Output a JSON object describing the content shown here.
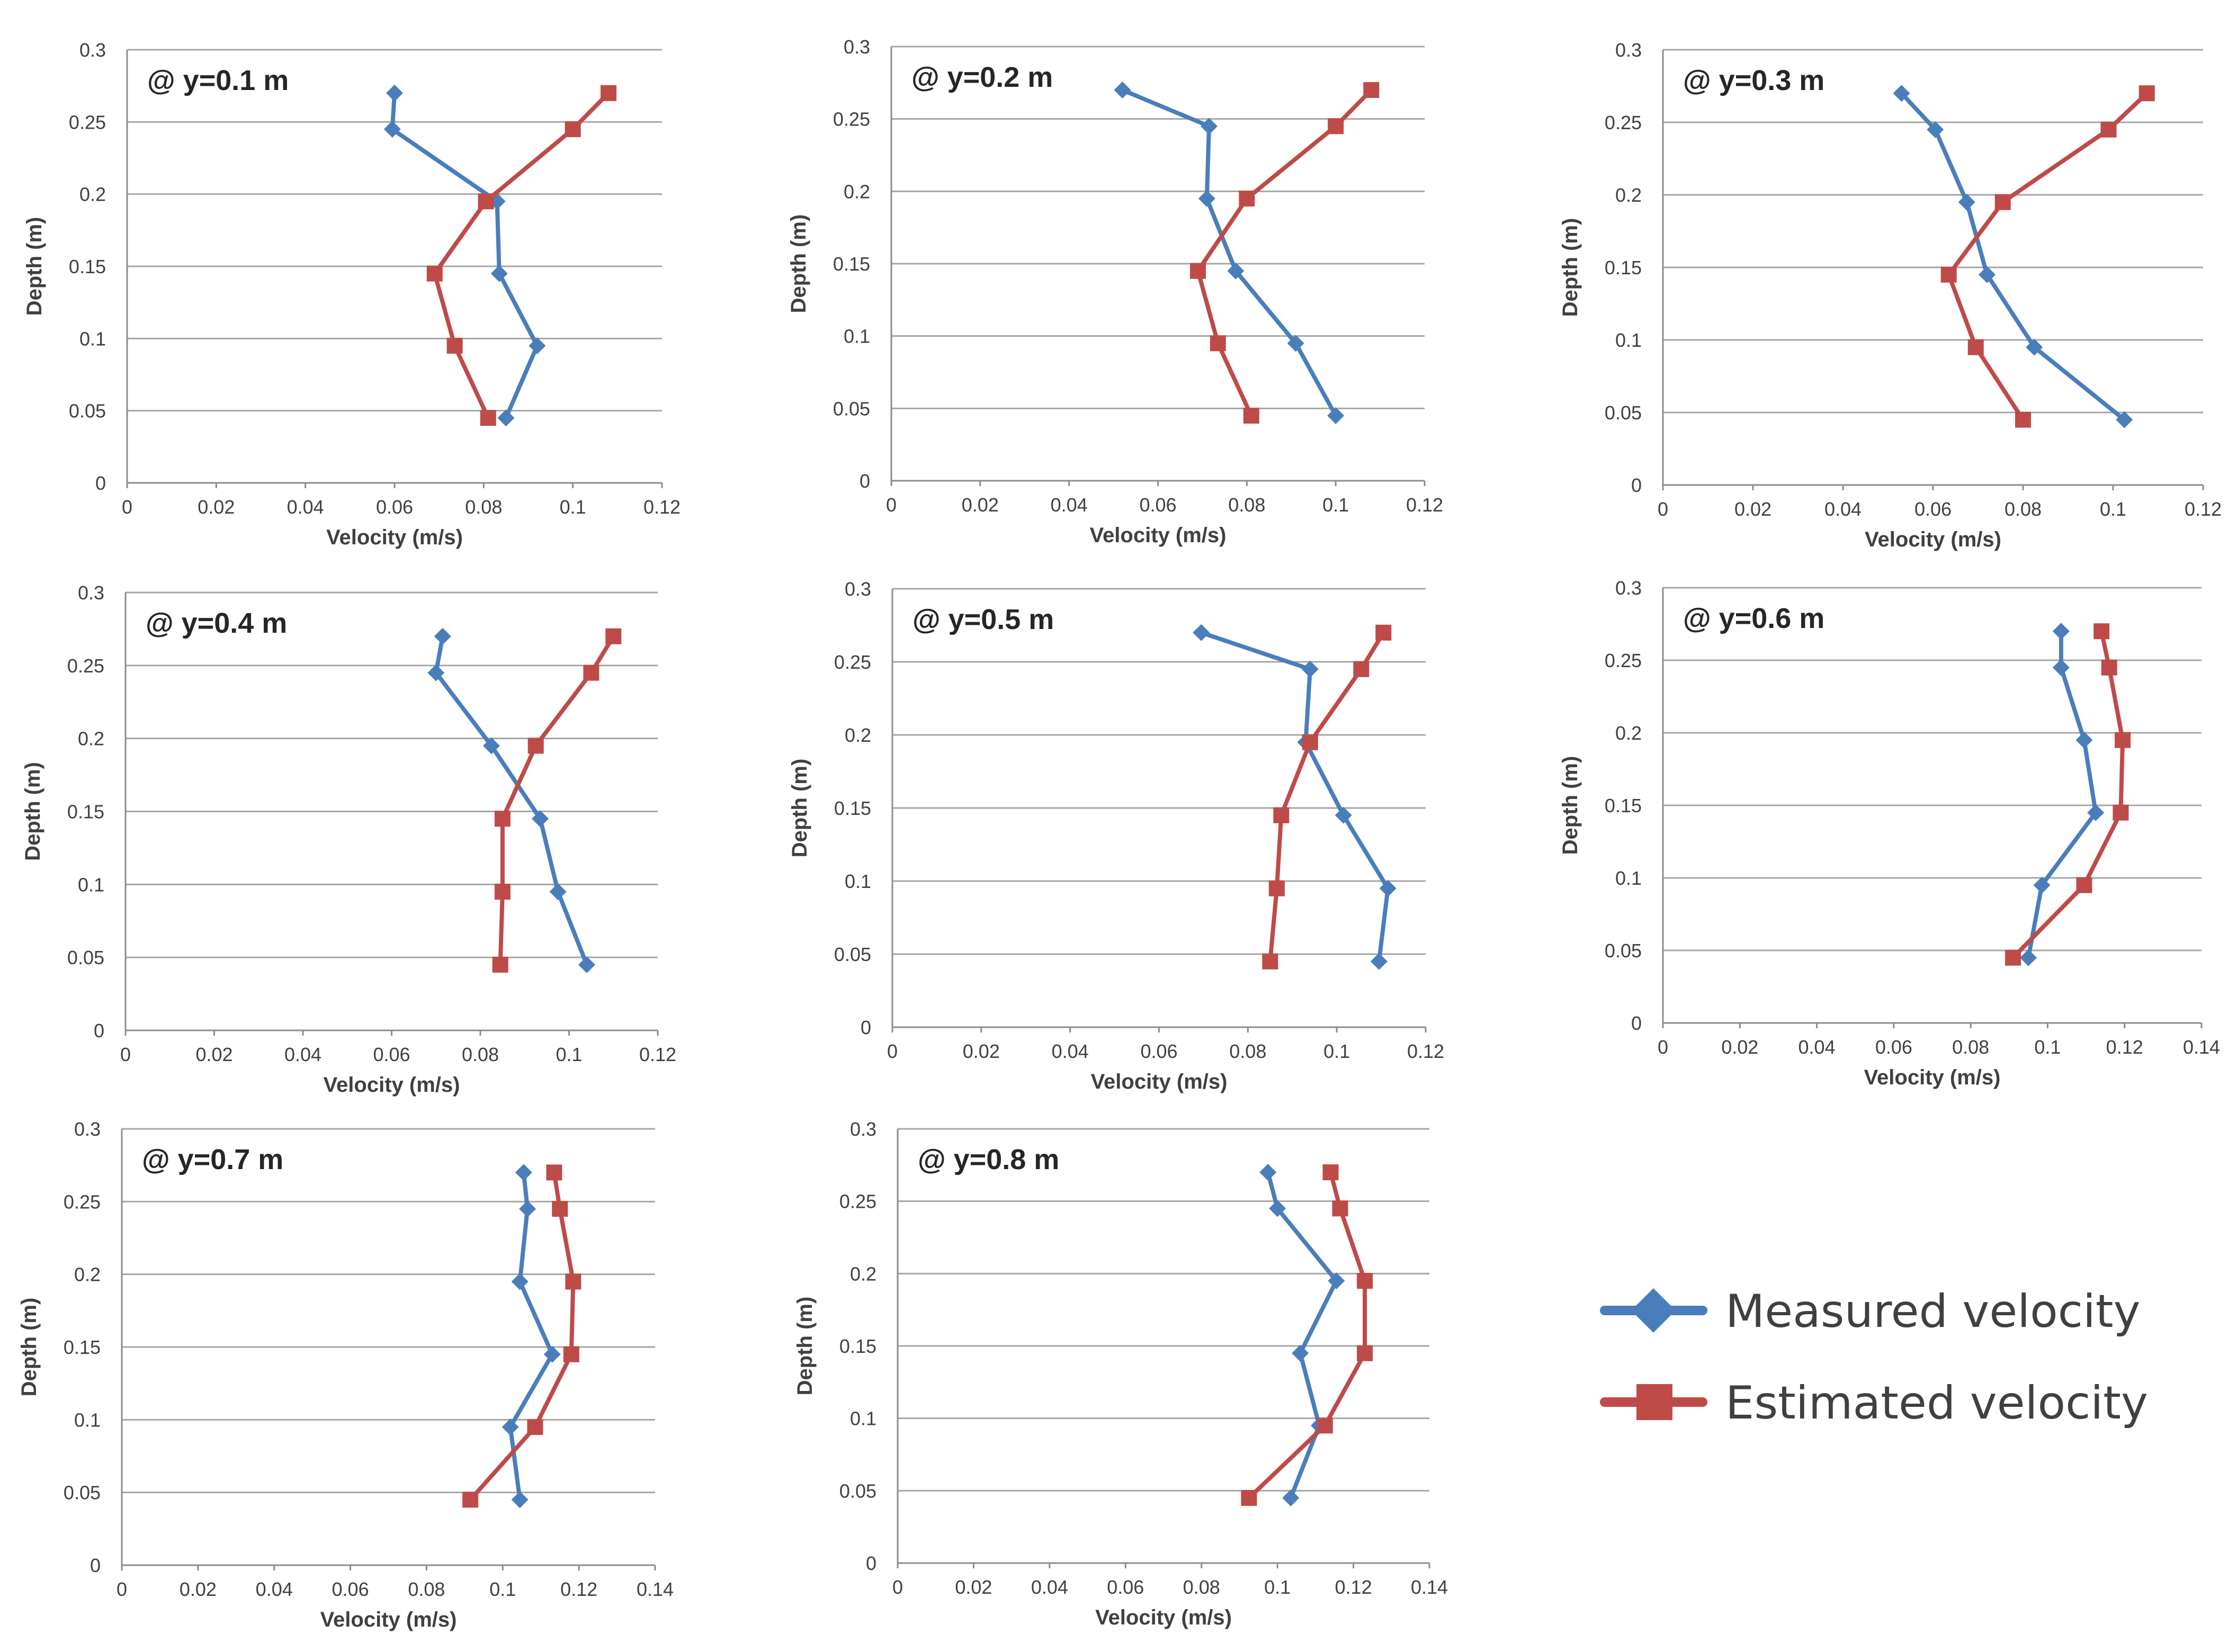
{
  "chart_data": [
    {
      "type": "line",
      "title": "@ y=0.1 m",
      "xlabel": "Velocity (m/s)",
      "ylabel": "Depth (m)",
      "xlim": [
        0,
        0.12
      ],
      "ylim": [
        0,
        0.3
      ],
      "xticks": [
        "0",
        "0.02",
        "0.04",
        "0.06",
        "0.08",
        "0.1",
        "0.12"
      ],
      "yticks": [
        "0",
        "0.05",
        "0.1",
        "0.15",
        "0.2",
        "0.25",
        "0.3"
      ],
      "series": [
        {
          "name": "Measured velocity",
          "color": "#4a7ebb",
          "marker": "diamond",
          "points": [
            [
              0.06,
              0.27
            ],
            [
              0.0595,
              0.245
            ],
            [
              0.083,
              0.195
            ],
            [
              0.0835,
              0.145
            ],
            [
              0.092,
              0.095
            ],
            [
              0.085,
              0.045
            ]
          ]
        },
        {
          "name": "Estimated velocity",
          "color": "#be4b48",
          "marker": "square",
          "points": [
            [
              0.108,
              0.27
            ],
            [
              0.1,
              0.245
            ],
            [
              0.0805,
              0.195
            ],
            [
              0.069,
              0.145
            ],
            [
              0.0735,
              0.095
            ],
            [
              0.081,
              0.045
            ]
          ]
        }
      ]
    },
    {
      "type": "line",
      "title": "@ y=0.2 m",
      "xlabel": "Velocity (m/s)",
      "ylabel": "Depth (m)",
      "xlim": [
        0,
        0.12
      ],
      "ylim": [
        0,
        0.3
      ],
      "xticks": [
        "0",
        "0.02",
        "0.04",
        "0.06",
        "0.08",
        "0.1",
        "0.12"
      ],
      "yticks": [
        "0",
        "0.05",
        "0.1",
        "0.15",
        "0.2",
        "0.25",
        "0.3"
      ],
      "series": [
        {
          "name": "Measured velocity",
          "color": "#4a7ebb",
          "marker": "diamond",
          "points": [
            [
              0.052,
              0.27
            ],
            [
              0.0715,
              0.245
            ],
            [
              0.071,
              0.195
            ],
            [
              0.0775,
              0.145
            ],
            [
              0.091,
              0.095
            ],
            [
              0.1,
              0.045
            ]
          ]
        },
        {
          "name": "Estimated velocity",
          "color": "#be4b48",
          "marker": "square",
          "points": [
            [
              0.108,
              0.27
            ],
            [
              0.1,
              0.245
            ],
            [
              0.08,
              0.195
            ],
            [
              0.069,
              0.145
            ],
            [
              0.0735,
              0.095
            ],
            [
              0.081,
              0.045
            ]
          ]
        }
      ]
    },
    {
      "type": "line",
      "title": "@ y=0.3 m",
      "xlabel": "Velocity (m/s)",
      "ylabel": "Depth (m)",
      "xlim": [
        0,
        0.12
      ],
      "ylim": [
        0,
        0.3
      ],
      "xticks": [
        "0",
        "0.02",
        "0.04",
        "0.06",
        "0.08",
        "0.1",
        "0.12"
      ],
      "yticks": [
        "0",
        "0.05",
        "0.1",
        "0.15",
        "0.2",
        "0.25",
        "0.3"
      ],
      "series": [
        {
          "name": "Measured velocity",
          "color": "#4a7ebb",
          "marker": "diamond",
          "points": [
            [
              0.053,
              0.27
            ],
            [
              0.0605,
              0.245
            ],
            [
              0.0675,
              0.195
            ],
            [
              0.072,
              0.145
            ],
            [
              0.0825,
              0.095
            ],
            [
              0.1025,
              0.045
            ]
          ]
        },
        {
          "name": "Estimated velocity",
          "color": "#be4b48",
          "marker": "square",
          "points": [
            [
              0.1075,
              0.27
            ],
            [
              0.099,
              0.245
            ],
            [
              0.0755,
              0.195
            ],
            [
              0.0635,
              0.145
            ],
            [
              0.0695,
              0.095
            ],
            [
              0.08,
              0.045
            ]
          ]
        }
      ]
    },
    {
      "type": "line",
      "title": "@ y=0.4 m",
      "xlabel": "Velocity (m/s)",
      "ylabel": "Depth (m)",
      "xlim": [
        0,
        0.12
      ],
      "ylim": [
        0,
        0.3
      ],
      "xticks": [
        "0",
        "0.02",
        "0.04",
        "0.06",
        "0.08",
        "0.1",
        "0.12"
      ],
      "yticks": [
        "0",
        "0.05",
        "0.1",
        "0.15",
        "0.2",
        "0.25",
        "0.3"
      ],
      "series": [
        {
          "name": "Measured velocity",
          "color": "#4a7ebb",
          "marker": "diamond",
          "points": [
            [
              0.0715,
              0.27
            ],
            [
              0.07,
              0.245
            ],
            [
              0.0825,
              0.195
            ],
            [
              0.0935,
              0.145
            ],
            [
              0.0975,
              0.095
            ],
            [
              0.104,
              0.045
            ]
          ]
        },
        {
          "name": "Estimated velocity",
          "color": "#be4b48",
          "marker": "square",
          "points": [
            [
              0.11,
              0.27
            ],
            [
              0.105,
              0.245
            ],
            [
              0.0925,
              0.195
            ],
            [
              0.085,
              0.145
            ],
            [
              0.085,
              0.095
            ],
            [
              0.0845,
              0.045
            ]
          ]
        }
      ]
    },
    {
      "type": "line",
      "title": "@ y=0.5 m",
      "xlabel": "Velocity (m/s)",
      "ylabel": "Depth (m)",
      "xlim": [
        0,
        0.12
      ],
      "ylim": [
        0,
        0.3
      ],
      "xticks": [
        "0",
        "0.02",
        "0.04",
        "0.06",
        "0.08",
        "0.1",
        "0.12"
      ],
      "yticks": [
        "0",
        "0.05",
        "0.1",
        "0.15",
        "0.2",
        "0.25",
        "0.3"
      ],
      "series": [
        {
          "name": "Measured velocity",
          "color": "#4a7ebb",
          "marker": "diamond",
          "points": [
            [
              0.0695,
              0.27
            ],
            [
              0.094,
              0.245
            ],
            [
              0.093,
              0.195
            ],
            [
              0.1015,
              0.145
            ],
            [
              0.1115,
              0.095
            ],
            [
              0.1095,
              0.045
            ]
          ]
        },
        {
          "name": "Estimated velocity",
          "color": "#be4b48",
          "marker": "square",
          "points": [
            [
              0.1105,
              0.27
            ],
            [
              0.1055,
              0.245
            ],
            [
              0.094,
              0.195
            ],
            [
              0.0875,
              0.145
            ],
            [
              0.0865,
              0.095
            ],
            [
              0.085,
              0.045
            ]
          ]
        }
      ]
    },
    {
      "type": "line",
      "title": "@ y=0.6 m",
      "xlabel": "Velocity (m/s)",
      "ylabel": "Depth (m)",
      "xlim": [
        0,
        0.14
      ],
      "ylim": [
        0,
        0.3
      ],
      "xticks": [
        "0",
        "0.02",
        "0.04",
        "0.06",
        "0.08",
        "0.1",
        "0.12",
        "0.14"
      ],
      "yticks": [
        "0",
        "0.05",
        "0.1",
        "0.15",
        "0.2",
        "0.25",
        "0.3"
      ],
      "series": [
        {
          "name": "Measured velocity",
          "color": "#4a7ebb",
          "marker": "diamond",
          "points": [
            [
              0.1035,
              0.27
            ],
            [
              0.1035,
              0.245
            ],
            [
              0.1095,
              0.195
            ],
            [
              0.1125,
              0.145
            ],
            [
              0.0985,
              0.095
            ],
            [
              0.095,
              0.045
            ]
          ]
        },
        {
          "name": "Estimated velocity",
          "color": "#be4b48",
          "marker": "square",
          "points": [
            [
              0.114,
              0.27
            ],
            [
              0.116,
              0.245
            ],
            [
              0.1195,
              0.195
            ],
            [
              0.119,
              0.145
            ],
            [
              0.1095,
              0.095
            ],
            [
              0.091,
              0.045
            ]
          ]
        }
      ]
    },
    {
      "type": "line",
      "title": "@ y=0.7 m",
      "xlabel": "Velocity (m/s)",
      "ylabel": "Depth (m)",
      "xlim": [
        0,
        0.14
      ],
      "ylim": [
        0,
        0.3
      ],
      "xticks": [
        "0",
        "0.02",
        "0.04",
        "0.06",
        "0.08",
        "0.1",
        "0.12",
        "0.14"
      ],
      "yticks": [
        "0",
        "0.05",
        "0.1",
        "0.15",
        "0.2",
        "0.25",
        "0.3"
      ],
      "series": [
        {
          "name": "Measured velocity",
          "color": "#4a7ebb",
          "marker": "diamond",
          "points": [
            [
              0.1055,
              0.27
            ],
            [
              0.1065,
              0.245
            ],
            [
              0.1045,
              0.195
            ],
            [
              0.113,
              0.145
            ],
            [
              0.102,
              0.095
            ],
            [
              0.1045,
              0.045
            ]
          ]
        },
        {
          "name": "Estimated velocity",
          "color": "#be4b48",
          "marker": "square",
          "points": [
            [
              0.1135,
              0.27
            ],
            [
              0.115,
              0.245
            ],
            [
              0.1185,
              0.195
            ],
            [
              0.118,
              0.145
            ],
            [
              0.1085,
              0.095
            ],
            [
              0.0915,
              0.045
            ]
          ]
        }
      ]
    },
    {
      "type": "line",
      "title": "@ y=0.8 m",
      "xlabel": "Velocity (m/s)",
      "ylabel": "Depth (m)",
      "xlim": [
        0,
        0.14
      ],
      "ylim": [
        0,
        0.3
      ],
      "xticks": [
        "0",
        "0.02",
        "0.04",
        "0.06",
        "0.08",
        "0.1",
        "0.12",
        "0.14"
      ],
      "yticks": [
        "0",
        "0.05",
        "0.1",
        "0.15",
        "0.2",
        "0.25",
        "0.3"
      ],
      "series": [
        {
          "name": "Measured velocity",
          "color": "#4a7ebb",
          "marker": "diamond",
          "points": [
            [
              0.0975,
              0.27
            ],
            [
              0.1,
              0.245
            ],
            [
              0.1155,
              0.195
            ],
            [
              0.106,
              0.145
            ],
            [
              0.111,
              0.095
            ],
            [
              0.1035,
              0.045
            ]
          ]
        },
        {
          "name": "Estimated velocity",
          "color": "#be4b48",
          "marker": "square",
          "points": [
            [
              0.114,
              0.27
            ],
            [
              0.1165,
              0.245
            ],
            [
              0.123,
              0.195
            ],
            [
              0.123,
              0.145
            ],
            [
              0.1125,
              0.095
            ],
            [
              0.0925,
              0.045
            ]
          ]
        }
      ]
    }
  ],
  "legend": {
    "position": "bottom-right",
    "items": [
      {
        "label": "Measured velocity",
        "color": "#4a7ebb",
        "marker": "diamond"
      },
      {
        "label": "Estimated velocity",
        "color": "#be4b48",
        "marker": "square"
      }
    ]
  }
}
